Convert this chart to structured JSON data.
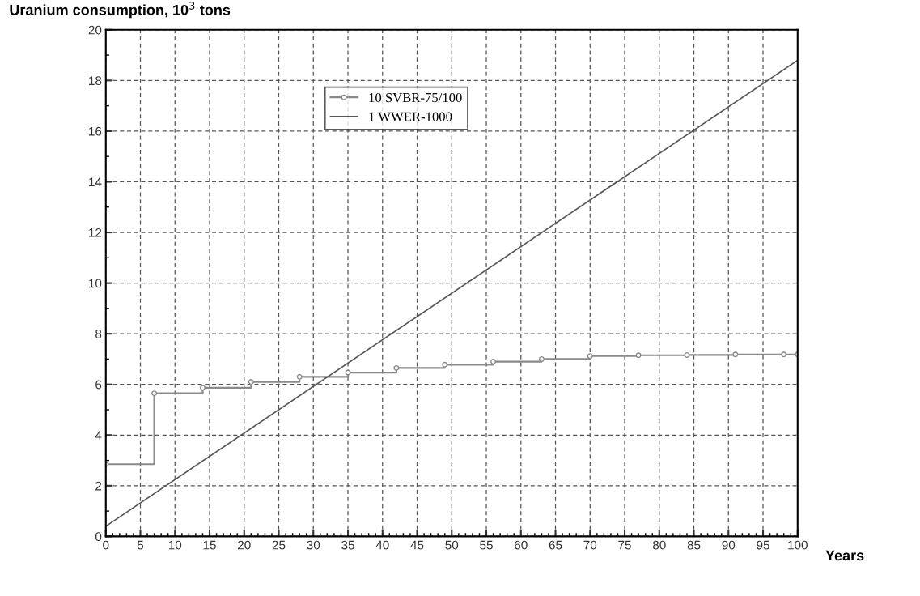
{
  "chart_data": {
    "type": "step",
    "title": "Uranium consumption, 10$^{3}$ tons",
    "xlabel": "Years",
    "xlim": [
      0,
      100
    ],
    "ylim": [
      0,
      20
    ],
    "xticks": [
      0,
      5,
      10,
      15,
      20,
      25,
      30,
      35,
      40,
      45,
      50,
      55,
      60,
      65,
      70,
      75,
      80,
      85,
      90,
      95,
      100
    ],
    "yticks": [
      0,
      2,
      4,
      6,
      8,
      10,
      12,
      14,
      16,
      18,
      20
    ],
    "grid": true,
    "legend": "top",
    "line_style": "solid",
    "series": [
      {
        "name": "10 SVBR-75/100",
        "color": "#8a8a8a",
        "marker": "circle",
        "x": [
          0,
          7,
          14,
          21,
          28,
          35,
          42,
          49,
          56,
          63,
          70,
          77,
          84,
          91,
          98,
          100
        ],
        "values": [
          2.85,
          5.65,
          5.87,
          6.1,
          6.3,
          6.47,
          6.65,
          6.78,
          6.9,
          7.0,
          7.12,
          7.15,
          7.16,
          7.18,
          7.18,
          7.18
        ]
      },
      {
        "name": "1 WWER-1000",
        "type": "line",
        "color": "#555555",
        "marker": "none",
        "x": [
          0,
          100
        ],
        "values": [
          0.4,
          18.8
        ]
      }
    ]
  }
}
